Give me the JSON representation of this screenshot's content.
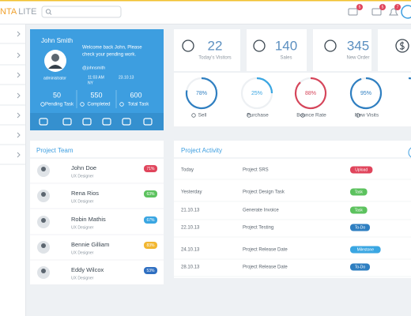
{
  "header": {
    "brand_accent": "NTA",
    "brand_rest": "LITE",
    "badges": [
      "5",
      "5",
      "7"
    ]
  },
  "profile": {
    "name": "John Smith",
    "welcome": [
      "Welcome back John, Please",
      "check your pending work."
    ],
    "role": "administrator",
    "handle": "@johnsmith",
    "time": "11:03 AM",
    "date": "23.10.13",
    "location": "NY",
    "stats": [
      {
        "value": "50",
        "label": "Pending Task"
      },
      {
        "value": "550",
        "label": "Completed"
      },
      {
        "value": "600",
        "label": "Total Task"
      }
    ]
  },
  "stat_boxes": [
    {
      "value": "22",
      "label": "Today's Visitors"
    },
    {
      "value": "140",
      "label": "Sales"
    },
    {
      "value": "345",
      "label": "New Order"
    }
  ],
  "gauges": [
    {
      "value": 78,
      "value_label": "78%",
      "label": "Sell",
      "color": "#2f7fc1"
    },
    {
      "value": 25,
      "value_label": "25%",
      "label": "Purchase",
      "color": "#3aa6e2"
    },
    {
      "value": 88,
      "value_label": "88%",
      "label": "Bounce Rate",
      "color": "#d6455a"
    },
    {
      "value": 95,
      "value_label": "95%",
      "label": "New Visits",
      "color": "#2f7fc1"
    }
  ],
  "team": {
    "title": "Project Team",
    "members": [
      {
        "name": "John Doe",
        "role": "UX Designer",
        "progress": "71%",
        "color": "#e0455c"
      },
      {
        "name": "Rena Rios",
        "role": "UX Designer",
        "progress": "63%",
        "color": "#5cc25e"
      },
      {
        "name": "Robin Mathis",
        "role": "UX Designer",
        "progress": "67%",
        "color": "#3aa6e2"
      },
      {
        "name": "Bennie Gilliam",
        "role": "UX Designer",
        "progress": "83%",
        "color": "#f2b731"
      },
      {
        "name": "Eddy Wilcox",
        "role": "UX Designer",
        "progress": "53%",
        "color": "#2f6fc1"
      }
    ]
  },
  "activity": {
    "title": "Project Activity",
    "rows": [
      {
        "date": "Today",
        "task": "Project SRS",
        "tag": "Upload",
        "color": "#e0455c"
      },
      {
        "date": "Yesterday",
        "task": "Project Design Task",
        "tag": "Task",
        "color": "#5cc25e"
      },
      {
        "date": "21.10.13",
        "task": "Generate Invoice",
        "tag": "Task",
        "color": "#5cc25e"
      },
      {
        "date": "22.10.13",
        "task": "Project Testing",
        "tag": "To-Do",
        "color": "#2f7fc1"
      },
      {
        "date": "24.10.13",
        "task": "Project Release Date",
        "tag": "Milestone",
        "color": "#3aa6e2"
      },
      {
        "date": "28.10.13",
        "task": "Project Release Date",
        "tag": "To-Do",
        "color": "#2f7fc1"
      }
    ]
  }
}
